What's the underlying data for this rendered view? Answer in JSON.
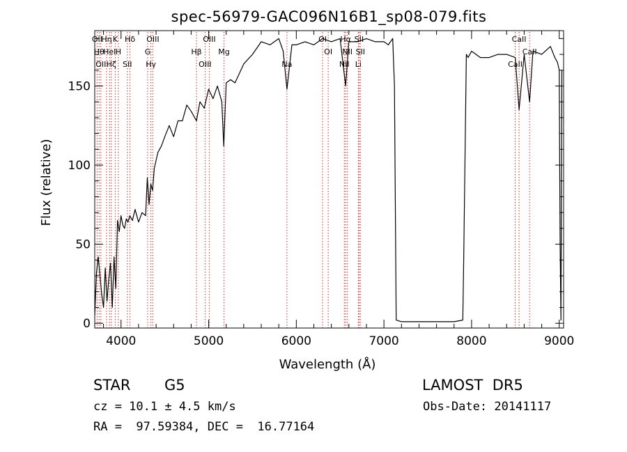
{
  "chart_data": {
    "type": "line",
    "title": "spec-56979-GAC096N16B1_sp08-079.fits",
    "xlabel": "Wavelength (Å)",
    "ylabel": "Flux (relative)",
    "xlim": [
      3700,
      9050
    ],
    "ylim": [
      -3,
      185
    ],
    "xticks": [
      4000,
      5000,
      6000,
      7000,
      8000,
      9000
    ],
    "yticks": [
      0,
      50,
      100,
      150
    ],
    "grid": false,
    "series": [
      {
        "color": "#000000",
        "x": [
          3700,
          3720,
          3740,
          3760,
          3780,
          3800,
          3820,
          3840,
          3860,
          3880,
          3900,
          3920,
          3940,
          3960,
          3980,
          4000,
          4020,
          4040,
          4060,
          4080,
          4100,
          4130,
          4160,
          4200,
          4240,
          4280,
          4300,
          4320,
          4340,
          4360,
          4380,
          4420,
          4460,
          4500,
          4550,
          4600,
          4650,
          4700,
          4750,
          4800,
          4861,
          4900,
          4950,
          5000,
          5050,
          5100,
          5150,
          5172,
          5200,
          5250,
          5300,
          5400,
          5500,
          5600,
          5700,
          5800,
          5850,
          5893,
          5950,
          6000,
          6100,
          6200,
          6300,
          6400,
          6500,
          6563,
          6600,
          6700,
          6800,
          6900,
          7000,
          7050,
          7100,
          7120,
          7140,
          7200,
          7400,
          7600,
          7800,
          7900,
          7910,
          7940,
          7960,
          8000,
          8100,
          8200,
          8300,
          8400,
          8498,
          8542,
          8600,
          8662,
          8700,
          8800,
          8900,
          8950,
          8980,
          9000,
          9010,
          9020,
          9030
        ],
        "y": [
          5,
          32,
          42,
          30,
          18,
          10,
          35,
          14,
          28,
          38,
          10,
          42,
          22,
          65,
          58,
          68,
          62,
          60,
          66,
          64,
          68,
          65,
          72,
          64,
          70,
          68,
          92,
          75,
          88,
          84,
          98,
          108,
          112,
          118,
          125,
          118,
          128,
          128,
          138,
          134,
          128,
          140,
          136,
          148,
          142,
          150,
          140,
          112,
          152,
          154,
          152,
          164,
          170,
          178,
          176,
          180,
          172,
          148,
          176,
          176,
          178,
          176,
          180,
          178,
          180,
          150,
          178,
          178,
          180,
          178,
          178,
          176,
          180,
          150,
          2,
          1,
          1,
          1,
          1,
          2,
          40,
          170,
          168,
          172,
          168,
          168,
          170,
          170,
          168,
          135,
          170,
          140,
          172,
          170,
          175,
          168,
          165,
          160,
          50,
          2,
          160
        ]
      }
    ],
    "lines": [
      {
        "x": 3727,
        "label": "OII"
      },
      {
        "x": 3750,
        "label": "Hθ"
      },
      {
        "x": 3770,
        "label": "OII"
      },
      {
        "x": 3835,
        "label": "Hη"
      },
      {
        "x": 3869,
        "label": "HeI"
      },
      {
        "x": 3889,
        "label": "Hζ"
      },
      {
        "x": 3934,
        "label": "K"
      },
      {
        "x": 3969,
        "label": "H"
      },
      {
        "x": 4072,
        "label": "SII"
      },
      {
        "x": 4102,
        "label": "Hδ"
      },
      {
        "x": 4304,
        "label": "G"
      },
      {
        "x": 4341,
        "label": "Hγ"
      },
      {
        "x": 4363,
        "label": "OIII"
      },
      {
        "x": 4861,
        "label": "Hβ"
      },
      {
        "x": 4959,
        "label": "OIII"
      },
      {
        "x": 5007,
        "label": "OIII"
      },
      {
        "x": 5175,
        "label": "Mg"
      },
      {
        "x": 5893,
        "label": "Na"
      },
      {
        "x": 6300,
        "label": "OI"
      },
      {
        "x": 6364,
        "label": "OI"
      },
      {
        "x": 6548,
        "label": "NII"
      },
      {
        "x": 6563,
        "label": "Hα"
      },
      {
        "x": 6583,
        "label": "NII"
      },
      {
        "x": 6708,
        "label": "Li"
      },
      {
        "x": 6716,
        "label": "SII"
      },
      {
        "x": 6731,
        "label": "SII"
      },
      {
        "x": 8498,
        "label": "CaII"
      },
      {
        "x": 8542,
        "label": "CaII"
      },
      {
        "x": 8662,
        "label": "CaII"
      }
    ]
  },
  "info": {
    "object_class": "STAR",
    "subclass": "G5",
    "survey": "LAMOST  DR5",
    "redshift": "cz = 10.1 ± 4.5 km/s",
    "obs_date": "Obs-Date: 20141117",
    "coords": "RA =  97.59384, DEC =  16.77164"
  }
}
